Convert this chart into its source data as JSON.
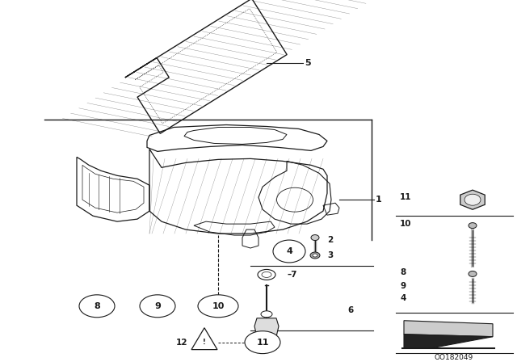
{
  "bg_color": "#ffffff",
  "line_color": "#1a1a1a",
  "part_number": "OO182049",
  "fig_w": 6.4,
  "fig_h": 4.48,
  "dpi": 100
}
